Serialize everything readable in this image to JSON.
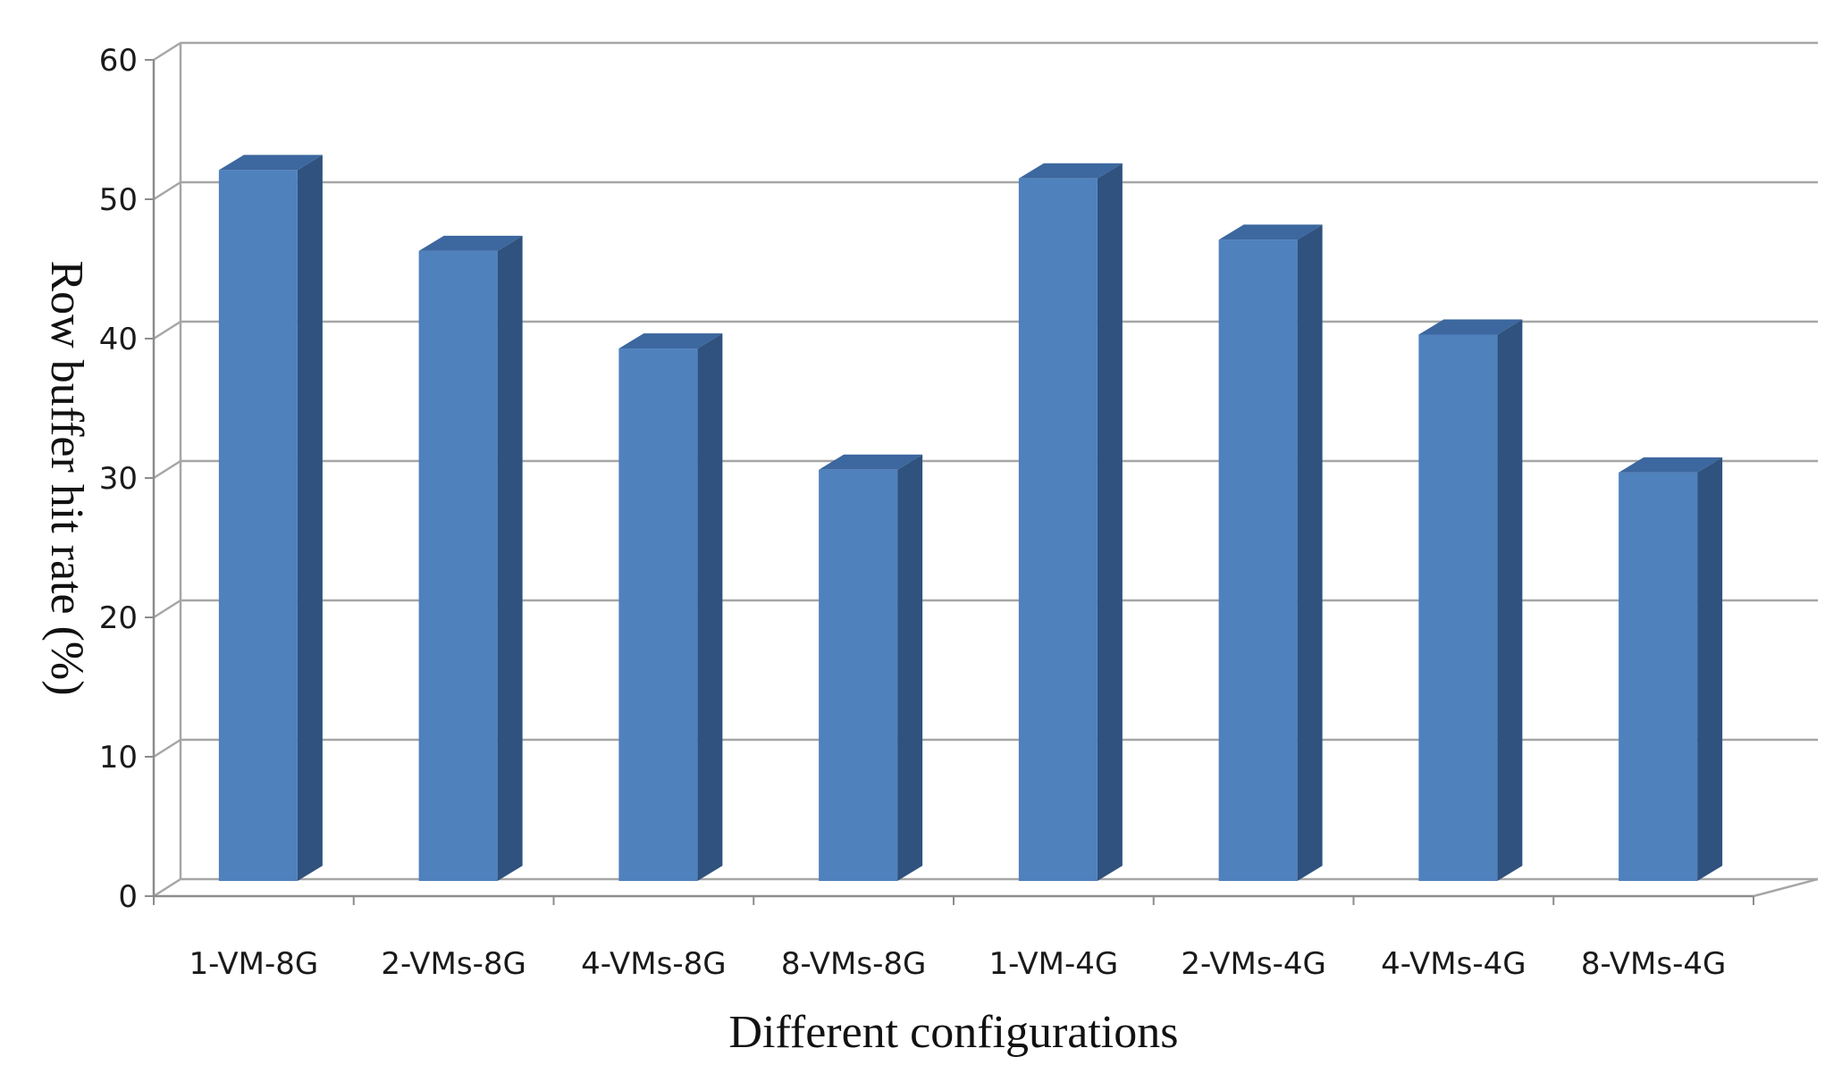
{
  "chart_data": {
    "type": "bar",
    "title": "",
    "xlabel": "Different configurations",
    "ylabel": "Row buffer hit rate (%)",
    "categories": [
      "1-VM-8G",
      "2-VMs-8G",
      "4-VMs-8G",
      "8-VMs-8G",
      "1-VM-4G",
      "2-VMs-4G",
      "4-VMs-4G",
      "8-VMs-4G"
    ],
    "values": [
      51,
      45.2,
      38.2,
      29.5,
      50.4,
      46,
      39.2,
      29.3
    ],
    "ylim": [
      0,
      60
    ],
    "yticks": [
      "0",
      "10",
      "20",
      "30",
      "40",
      "50",
      "60"
    ],
    "grid": true,
    "legend": "none",
    "style": "3d-column",
    "colors": {
      "bar_front": "#4f81bd",
      "bar_side": "#30527e",
      "bar_top": "#3c679f",
      "grid": "#a6a6a6",
      "axis": "#8c8c8c"
    }
  }
}
